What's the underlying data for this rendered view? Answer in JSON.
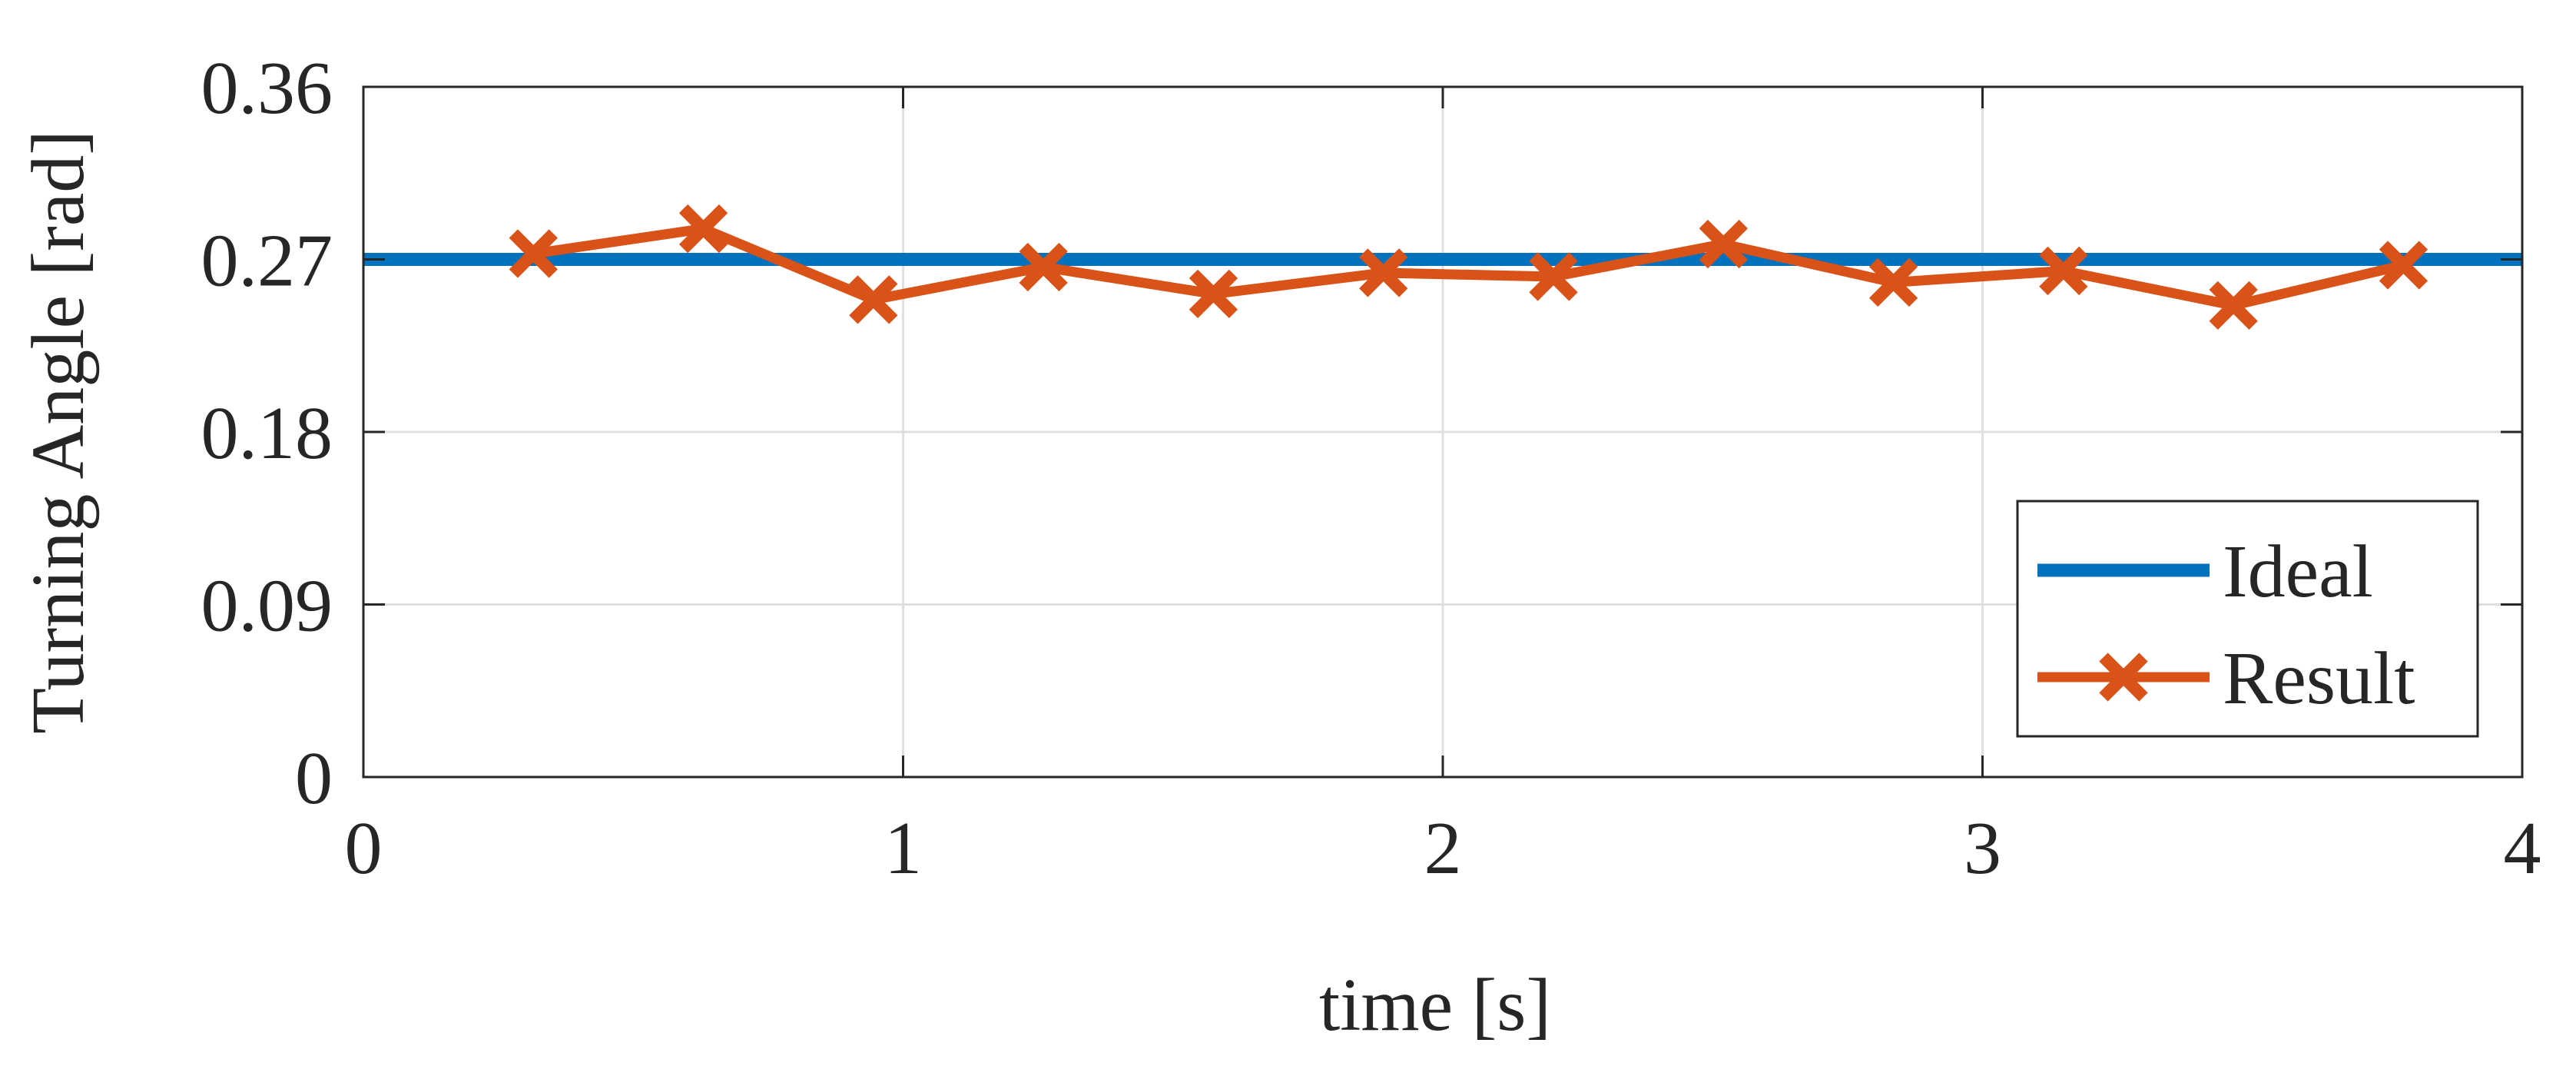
{
  "chart_data": {
    "type": "line",
    "xlabel": "time [s]",
    "ylabel": "Turning Angle [rad]",
    "xlim": [
      0,
      4
    ],
    "xticks": [
      0,
      1,
      2,
      3,
      4
    ],
    "ylim": [
      0,
      0.36
    ],
    "yticks": [
      0,
      0.09,
      0.18,
      0.27,
      0.36
    ],
    "grid": true,
    "legend": "lower right",
    "series": [
      {
        "name": "Ideal",
        "color": "#0072bd",
        "x": [
          0,
          4
        ],
        "values": [
          0.27,
          0.27
        ]
      },
      {
        "name": "Result",
        "color": "#d95319",
        "marker": "x",
        "x": [
          0.315,
          0.63,
          0.945,
          1.26,
          1.575,
          1.89,
          2.205,
          2.52,
          2.835,
          3.15,
          3.465,
          3.78
        ],
        "values": [
          0.273,
          0.286,
          0.249,
          0.266,
          0.252,
          0.263,
          0.261,
          0.278,
          0.258,
          0.264,
          0.246,
          0.267
        ]
      }
    ]
  }
}
